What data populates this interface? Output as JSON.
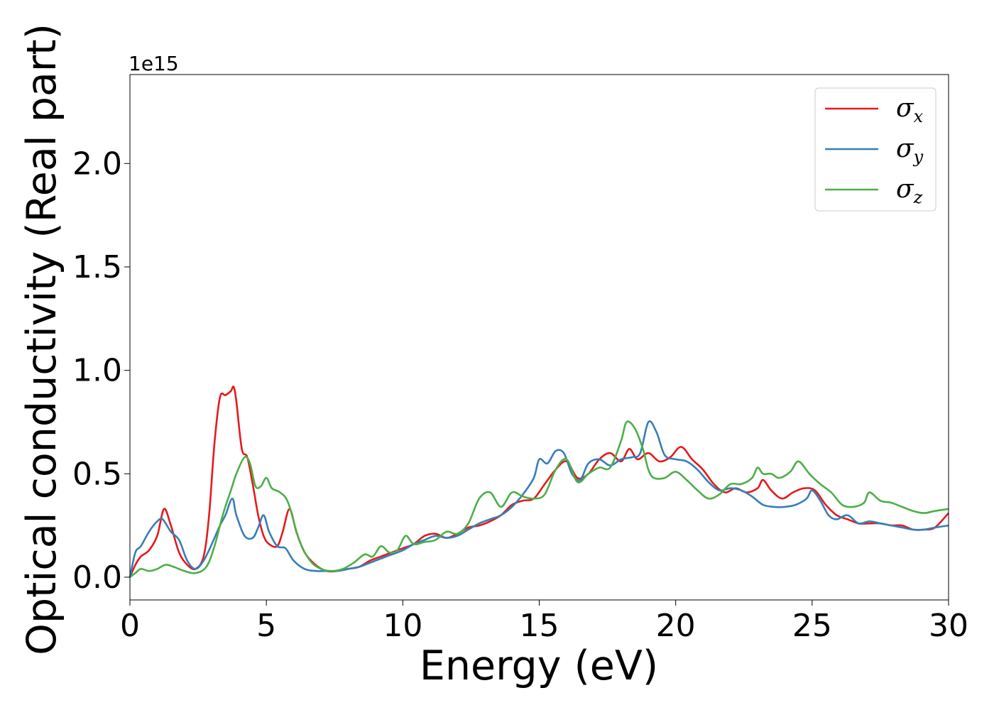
{
  "chart_data": {
    "type": "line",
    "xlabel": "Energy (eV)",
    "ylabel": "Optical conductivity (Real part)",
    "y_offset_text": "1e15",
    "y_scale": 1000000000000000.0,
    "xlim": [
      0,
      30
    ],
    "ylim": [
      -0.11,
      2.43
    ],
    "xticks": [
      0,
      5,
      10,
      15,
      20,
      25,
      30
    ],
    "xtick_labels": [
      "0",
      "5",
      "10",
      "15",
      "20",
      "25",
      "30"
    ],
    "yticks": [
      0.0,
      0.5,
      1.0,
      1.5,
      2.0
    ],
    "ytick_labels": [
      "0.0",
      "0.5",
      "1.0",
      "1.5",
      "2.0"
    ],
    "grid": false,
    "legend_position": "top-right",
    "series": [
      {
        "name": "σx",
        "symbol": "σ",
        "subscript": "x",
        "color": "#e41a1c",
        "x": [
          0,
          0.2,
          0.4,
          0.7,
          1.0,
          1.25,
          1.5,
          1.8,
          2.1,
          2.4,
          2.7,
          2.9,
          3.1,
          3.3,
          3.5,
          3.7,
          3.8,
          3.9,
          4.1,
          4.3,
          4.5,
          4.7,
          4.9,
          5.1,
          5.4,
          5.6,
          5.85,
          6.1,
          6.4,
          6.8,
          7.2,
          7.6,
          8.0,
          8.4,
          8.8,
          9.2,
          9.6,
          10.0,
          10.4,
          10.8,
          11.2,
          11.6,
          12.0,
          12.4,
          12.8,
          13.2,
          13.6,
          14.0,
          14.4,
          14.8,
          15.2,
          15.6,
          16.0,
          16.4,
          16.8,
          17.2,
          17.6,
          18.0,
          18.3,
          18.6,
          19.0,
          19.4,
          19.8,
          20.2,
          20.6,
          21.0,
          21.4,
          21.8,
          22.2,
          22.6,
          23.0,
          23.2,
          23.5,
          23.9,
          24.3,
          24.7,
          25.1,
          25.5,
          25.9,
          26.3,
          26.7,
          27.1,
          27.5,
          27.9,
          28.3,
          28.7,
          29.1,
          29.5,
          30.0
        ],
        "values": [
          0.0,
          0.06,
          0.1,
          0.13,
          0.2,
          0.33,
          0.25,
          0.12,
          0.06,
          0.04,
          0.1,
          0.3,
          0.65,
          0.87,
          0.88,
          0.9,
          0.92,
          0.85,
          0.62,
          0.58,
          0.45,
          0.3,
          0.2,
          0.16,
          0.15,
          0.22,
          0.33,
          0.22,
          0.12,
          0.06,
          0.03,
          0.03,
          0.04,
          0.05,
          0.08,
          0.1,
          0.12,
          0.14,
          0.16,
          0.2,
          0.21,
          0.19,
          0.21,
          0.24,
          0.25,
          0.27,
          0.3,
          0.35,
          0.37,
          0.38,
          0.45,
          0.52,
          0.56,
          0.48,
          0.5,
          0.57,
          0.6,
          0.56,
          0.62,
          0.57,
          0.6,
          0.56,
          0.58,
          0.63,
          0.57,
          0.52,
          0.45,
          0.41,
          0.43,
          0.41,
          0.43,
          0.47,
          0.42,
          0.38,
          0.41,
          0.43,
          0.42,
          0.35,
          0.3,
          0.28,
          0.26,
          0.26,
          0.26,
          0.25,
          0.25,
          0.23,
          0.23,
          0.24,
          0.31
        ]
      },
      {
        "name": "σy",
        "symbol": "σ",
        "subscript": "y",
        "color": "#377eb8",
        "x": [
          0,
          0.2,
          0.4,
          0.7,
          1.0,
          1.2,
          1.5,
          1.8,
          2.1,
          2.4,
          2.7,
          3.0,
          3.3,
          3.5,
          3.75,
          3.9,
          4.2,
          4.5,
          4.7,
          4.9,
          5.1,
          5.4,
          5.7,
          6.0,
          6.4,
          6.8,
          7.2,
          7.6,
          8.0,
          8.4,
          8.8,
          9.2,
          9.6,
          10.0,
          10.4,
          10.8,
          11.2,
          11.6,
          12.0,
          12.4,
          12.8,
          13.2,
          13.6,
          14.0,
          14.4,
          14.8,
          15.0,
          15.3,
          15.6,
          15.9,
          16.2,
          16.5,
          16.8,
          17.2,
          17.6,
          18.0,
          18.4,
          18.7,
          19.0,
          19.3,
          19.6,
          20.0,
          20.4,
          20.8,
          21.2,
          21.6,
          22.0,
          22.4,
          22.8,
          23.2,
          23.6,
          24.0,
          24.4,
          24.8,
          25.0,
          25.3,
          25.6,
          25.9,
          26.3,
          26.7,
          27.1,
          27.5,
          27.9,
          28.3,
          28.7,
          29.1,
          29.5,
          30.0
        ],
        "values": [
          0.0,
          0.12,
          0.15,
          0.22,
          0.27,
          0.28,
          0.22,
          0.18,
          0.08,
          0.04,
          0.08,
          0.16,
          0.25,
          0.3,
          0.38,
          0.3,
          0.2,
          0.19,
          0.24,
          0.3,
          0.22,
          0.15,
          0.14,
          0.08,
          0.04,
          0.03,
          0.03,
          0.03,
          0.04,
          0.05,
          0.07,
          0.09,
          0.11,
          0.13,
          0.16,
          0.18,
          0.2,
          0.19,
          0.2,
          0.23,
          0.26,
          0.28,
          0.3,
          0.34,
          0.4,
          0.48,
          0.57,
          0.55,
          0.61,
          0.6,
          0.5,
          0.47,
          0.55,
          0.57,
          0.54,
          0.57,
          0.58,
          0.6,
          0.75,
          0.7,
          0.59,
          0.57,
          0.56,
          0.52,
          0.46,
          0.42,
          0.43,
          0.42,
          0.39,
          0.35,
          0.34,
          0.34,
          0.35,
          0.38,
          0.42,
          0.37,
          0.3,
          0.28,
          0.3,
          0.26,
          0.27,
          0.26,
          0.25,
          0.24,
          0.23,
          0.23,
          0.24,
          0.25
        ]
      },
      {
        "name": "σz",
        "symbol": "σ",
        "subscript": "z",
        "color": "#4daf4a",
        "x": [
          0,
          0.2,
          0.4,
          0.7,
          1.0,
          1.3,
          1.6,
          2.0,
          2.4,
          2.8,
          3.1,
          3.4,
          3.7,
          3.9,
          4.2,
          4.4,
          4.6,
          4.8,
          5.0,
          5.2,
          5.5,
          5.8,
          6.2,
          6.6,
          7.0,
          7.4,
          7.8,
          8.2,
          8.6,
          8.9,
          9.2,
          9.5,
          9.8,
          10.1,
          10.4,
          10.8,
          11.2,
          11.6,
          12.0,
          12.4,
          12.8,
          13.2,
          13.6,
          14.0,
          14.4,
          14.8,
          15.2,
          15.6,
          16.0,
          16.4,
          16.8,
          17.2,
          17.6,
          18.0,
          18.2,
          18.5,
          18.8,
          19.0,
          19.2,
          19.6,
          20.0,
          20.4,
          20.8,
          21.2,
          21.6,
          22.0,
          22.4,
          22.8,
          23.0,
          23.2,
          23.5,
          23.8,
          24.2,
          24.5,
          24.9,
          25.3,
          25.7,
          26.1,
          26.5,
          26.9,
          27.1,
          27.5,
          27.9,
          28.3,
          28.7,
          29.1,
          29.5,
          30.0
        ],
        "values": [
          0.0,
          0.02,
          0.04,
          0.03,
          0.04,
          0.06,
          0.05,
          0.03,
          0.02,
          0.05,
          0.15,
          0.3,
          0.42,
          0.5,
          0.58,
          0.55,
          0.44,
          0.44,
          0.48,
          0.43,
          0.41,
          0.36,
          0.18,
          0.08,
          0.04,
          0.03,
          0.04,
          0.07,
          0.11,
          0.1,
          0.15,
          0.12,
          0.13,
          0.2,
          0.16,
          0.17,
          0.18,
          0.22,
          0.21,
          0.26,
          0.38,
          0.41,
          0.34,
          0.41,
          0.39,
          0.38,
          0.4,
          0.52,
          0.57,
          0.46,
          0.5,
          0.53,
          0.53,
          0.66,
          0.75,
          0.72,
          0.62,
          0.52,
          0.48,
          0.48,
          0.51,
          0.47,
          0.42,
          0.38,
          0.4,
          0.45,
          0.45,
          0.48,
          0.53,
          0.5,
          0.5,
          0.48,
          0.51,
          0.56,
          0.5,
          0.45,
          0.41,
          0.35,
          0.34,
          0.36,
          0.41,
          0.37,
          0.36,
          0.34,
          0.32,
          0.31,
          0.32,
          0.33
        ]
      }
    ]
  }
}
